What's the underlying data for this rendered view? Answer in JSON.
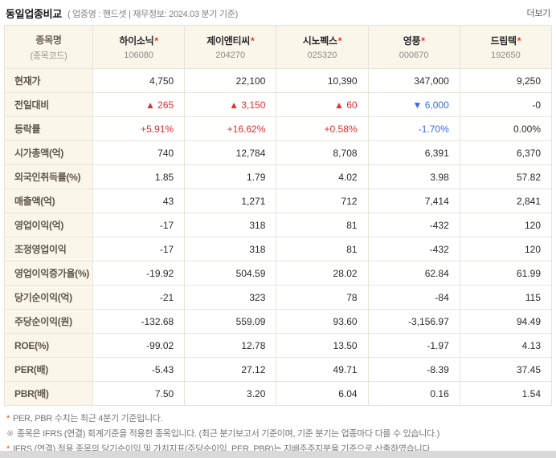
{
  "colors": {
    "up": "#ed2b2c",
    "down": "#3c6bea",
    "accent": "#ee5311",
    "panel_bg": "#fbf6ea",
    "outer_border": "#c6c6c6",
    "grid_border": "#e7e4da"
  },
  "header": {
    "title": "동일업종비교",
    "meta": "( 업종명 : 핸드셋 | 재무정보: 2024.03 분기 기준)",
    "more_label": "더보기"
  },
  "table": {
    "corner": {
      "line1": "종목명",
      "line2": "(종목코드)"
    },
    "star_marker": "*",
    "columns": [
      {
        "name": "하이소닉",
        "code": "106080"
      },
      {
        "name": "제이앤티씨",
        "code": "204270"
      },
      {
        "name": "시노펙스",
        "code": "025320"
      },
      {
        "name": "영풍",
        "code": "000670"
      },
      {
        "name": "드림텍",
        "code": "192650"
      }
    ],
    "rows": [
      {
        "key": "current-price",
        "label": "현재가",
        "values": [
          "4,750",
          "22,100",
          "10,390",
          "347,000",
          "9,250"
        ],
        "trends": [
          "",
          "",
          "",
          "",
          ""
        ]
      },
      {
        "key": "change",
        "label": "전일대비",
        "values": [
          "▲ 265",
          "▲ 3,150",
          "▲ 60",
          "▼ 6,000",
          "-0"
        ],
        "trends": [
          "up",
          "up",
          "up",
          "down",
          ""
        ]
      },
      {
        "key": "change-rate",
        "label": "등락률",
        "values": [
          "+5.91%",
          "+16.62%",
          "+0.58%",
          "-1.70%",
          "0.00%"
        ],
        "trends": [
          "up",
          "up",
          "up",
          "down",
          ""
        ]
      },
      {
        "key": "market-cap",
        "label": "시가총액(억)",
        "values": [
          "740",
          "12,784",
          "8,708",
          "6,391",
          "6,370"
        ],
        "trends": [
          "",
          "",
          "",
          "",
          ""
        ]
      },
      {
        "key": "foreign-ownership",
        "label": "외국인취득률(%)",
        "values": [
          "1.85",
          "1.79",
          "4.02",
          "3.98",
          "57.82"
        ],
        "trends": [
          "",
          "",
          "",
          "",
          ""
        ]
      },
      {
        "key": "revenue",
        "label": "매출액(억)",
        "values": [
          "43",
          "1,271",
          "712",
          "7,414",
          "2,841"
        ],
        "trends": [
          "",
          "",
          "",
          "",
          ""
        ]
      },
      {
        "key": "operating-profit",
        "label": "영업이익(억)",
        "values": [
          "-17",
          "318",
          "81",
          "-432",
          "120"
        ],
        "trends": [
          "",
          "",
          "",
          "",
          ""
        ]
      },
      {
        "key": "adjusted-operating-profit",
        "label": "조정영업이익",
        "values": [
          "-17",
          "318",
          "81",
          "-432",
          "120"
        ],
        "trends": [
          "",
          "",
          "",
          "",
          ""
        ]
      },
      {
        "key": "operating-profit-growth",
        "label": "영업이익증가율(%)",
        "values": [
          "-19.92",
          "504.59",
          "28.02",
          "62.84",
          "61.99"
        ],
        "trends": [
          "",
          "",
          "",
          "",
          ""
        ]
      },
      {
        "key": "net-income",
        "label": "당기순이익(억)",
        "values": [
          "-21",
          "323",
          "78",
          "-84",
          "115"
        ],
        "trends": [
          "",
          "",
          "",
          "",
          ""
        ]
      },
      {
        "key": "eps",
        "label": "주당순이익(원)",
        "values": [
          "-132.68",
          "559.09",
          "93.60",
          "-3,156.97",
          "94.49"
        ],
        "trends": [
          "",
          "",
          "",
          "",
          ""
        ]
      },
      {
        "key": "roe",
        "label": "ROE(%)",
        "values": [
          "-99.02",
          "12.78",
          "13.50",
          "-1.97",
          "4.13"
        ],
        "trends": [
          "",
          "",
          "",
          "",
          ""
        ]
      },
      {
        "key": "per",
        "label": "PER(배)",
        "values": [
          "-5.43",
          "27.12",
          "49.71",
          "-8.39",
          "37.45"
        ],
        "trends": [
          "",
          "",
          "",
          "",
          ""
        ]
      },
      {
        "key": "pbr",
        "label": "PBR(배)",
        "values": [
          "7.50",
          "3.20",
          "6.04",
          "0.16",
          "1.54"
        ],
        "trends": [
          "",
          "",
          "",
          "",
          ""
        ]
      }
    ]
  },
  "footnotes": [
    {
      "marker": "*",
      "accent": true,
      "text": "PER, PBR 수치는 최근 4분기 기준입니다."
    },
    {
      "marker": "※",
      "accent": false,
      "text": "종목은 IFRS (연결) 회계기준을 적용한 종목입니다. (최근 분기보고서 기준이며, 기준 분기는 업종마다 다를 수 있습니다.)"
    },
    {
      "marker": "*",
      "accent": true,
      "text": "IFRS (연결) 적용 종목의 당기순이익 및 가치지표(주당순이익, PER, PBR)는 지배주주지분을 기준으로 산출하였습니다."
    }
  ]
}
